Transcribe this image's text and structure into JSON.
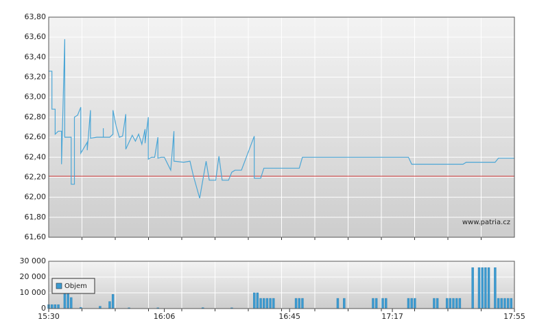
{
  "chart_data": [
    {
      "type": "line",
      "x": [
        "15:30",
        "15:31",
        "15:31",
        "15:32",
        "15:32",
        "15:33",
        "15:34",
        "15:34",
        "15:35",
        "15:35",
        "15:37",
        "15:37",
        "15:38",
        "15:38",
        "15:39",
        "15:40",
        "15:40",
        "15:42",
        "15:42",
        "15:43",
        "15:43",
        "15:45",
        "15:47",
        "15:47",
        "15:47",
        "15:49",
        "15:50",
        "15:50",
        "15:51",
        "15:52",
        "15:53",
        "15:54",
        "15:54",
        "15:56",
        "15:57",
        "15:58",
        "15:59",
        "16:00",
        "16:00",
        "16:01",
        "16:01",
        "16:02",
        "16:03",
        "16:04",
        "16:04",
        "16:05",
        "16:06",
        "16:08",
        "16:09",
        "16:09",
        "16:12",
        "16:14",
        "16:15",
        "16:17",
        "16:19",
        "16:20",
        "16:22",
        "16:23",
        "16:24",
        "16:26",
        "16:27",
        "16:28",
        "16:30",
        "16:34",
        "16:34",
        "16:36",
        "16:37",
        "16:48",
        "16:49",
        "17:22",
        "17:23",
        "17:39",
        "17:40",
        "17:49",
        "17:50",
        "17:55"
      ],
      "values": [
        63.26,
        63.26,
        62.88,
        62.88,
        62.63,
        62.66,
        62.66,
        62.33,
        63.58,
        62.6,
        62.6,
        62.13,
        62.13,
        62.8,
        62.82,
        62.9,
        62.44,
        62.55,
        62.47,
        62.87,
        62.59,
        62.6,
        62.6,
        62.69,
        62.6,
        62.6,
        62.63,
        62.87,
        62.71,
        62.6,
        62.61,
        62.83,
        62.48,
        62.62,
        62.56,
        62.63,
        62.53,
        62.68,
        62.54,
        62.8,
        62.38,
        62.4,
        62.4,
        62.6,
        62.39,
        62.4,
        62.4,
        62.27,
        62.66,
        62.36,
        62.35,
        62.36,
        62.22,
        61.99,
        62.36,
        62.17,
        62.17,
        62.41,
        62.17,
        62.17,
        62.25,
        62.27,
        62.27,
        62.61,
        62.19,
        62.19,
        62.29,
        62.29,
        62.4,
        62.4,
        62.33,
        62.33,
        62.35,
        62.35,
        62.39,
        62.39
      ],
      "color": "#4ba6d6",
      "xlim": [
        "15:30",
        "17:55"
      ],
      "ylim": [
        61.6,
        63.8
      ],
      "yticks": [
        {
          "value": 61.6,
          "label": "61,60"
        },
        {
          "value": 61.8,
          "label": "61,80"
        },
        {
          "value": 62.0,
          "label": "62,00"
        },
        {
          "value": 62.2,
          "label": "62,20"
        },
        {
          "value": 62.4,
          "label": "62,40"
        },
        {
          "value": 62.6,
          "label": "62,60"
        },
        {
          "value": 62.8,
          "label": "62,80"
        },
        {
          "value": 63.0,
          "label": "63,00"
        },
        {
          "value": 63.2,
          "label": "63,20"
        },
        {
          "value": 63.4,
          "label": "63,40"
        },
        {
          "value": 63.6,
          "label": "63,60"
        },
        {
          "value": 63.8,
          "label": "63,80"
        }
      ],
      "reference_line": {
        "value": 62.21,
        "color": "#cc3333"
      },
      "annotation": "www.patria.cz",
      "grid": true
    },
    {
      "type": "bar",
      "x": [
        "15:30",
        "15:31",
        "15:32",
        "15:33",
        "15:35",
        "15:36",
        "15:37",
        "15:40",
        "15:46",
        "15:49",
        "15:50",
        "15:55",
        "16:04",
        "16:18",
        "16:27",
        "16:34",
        "16:35",
        "16:36",
        "16:37",
        "16:38",
        "16:39",
        "16:40",
        "16:47",
        "16:48",
        "16:49",
        "17:00",
        "17:02",
        "17:11",
        "17:12",
        "17:14",
        "17:15",
        "17:22",
        "17:23",
        "17:24",
        "17:30",
        "17:31",
        "17:34",
        "17:35",
        "17:36",
        "17:37",
        "17:38",
        "17:42",
        "17:44",
        "17:45",
        "17:46",
        "17:47",
        "17:49",
        "17:50",
        "17:51",
        "17:52",
        "17:53",
        "17:54"
      ],
      "series": [
        {
          "name": "Objem",
          "color": "#3c9ad0",
          "values": [
            2500,
            2500,
            2500,
            2500,
            9500,
            9500,
            7000,
            800,
            1500,
            4500,
            9000,
            500,
            500,
            600,
            500,
            10000,
            10000,
            6500,
            6500,
            6500,
            6500,
            6500,
            6500,
            6500,
            6500,
            6500,
            6500,
            6500,
            6500,
            6500,
            6500,
            6500,
            6500,
            6500,
            6500,
            6500,
            6500,
            6500,
            6500,
            6500,
            6500,
            26000,
            26000,
            26000,
            26000,
            26000,
            26000,
            6500,
            6500,
            6500,
            6500,
            6500
          ]
        }
      ],
      "xlim": [
        "15:30",
        "17:55"
      ],
      "xticks": [
        "15:30",
        "16:06",
        "16:45",
        "17:17",
        "17:55"
      ],
      "ylim": [
        0,
        30000
      ],
      "yticks": [
        0,
        {
          "value": 10000,
          "label": "10 000"
        },
        {
          "value": 20000,
          "label": "20 000"
        },
        {
          "value": 30000,
          "label": "30 000"
        }
      ],
      "legend": "top-left",
      "grid": true
    }
  ]
}
